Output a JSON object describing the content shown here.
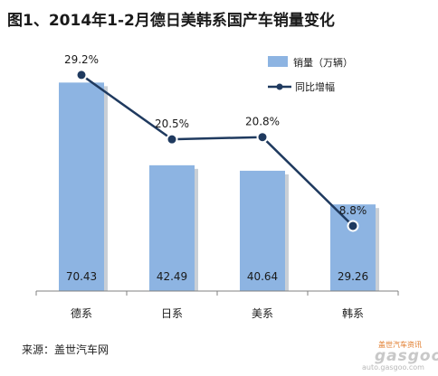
{
  "title": "图1、2014年1-2月德日美韩系国产车销量变化",
  "source": "来源：盖世汽车网",
  "watermark": {
    "top_text": "盖世汽车资讯",
    "logo": "gasgoo",
    "url": "auto.gasgoo.com"
  },
  "colors": {
    "bar": "#8db4e2",
    "bar_shadow": "#c9cfd6",
    "line": "#1f3a5f",
    "marker": "#1f3a5f",
    "axis": "#808080"
  },
  "chart_data": {
    "type": "bar",
    "categories": [
      "德系",
      "日系",
      "美系",
      "韩系"
    ],
    "series": [
      {
        "name": "销量（万辆）",
        "type": "bar",
        "values": [
          70.43,
          42.49,
          40.64,
          29.26
        ],
        "labels": [
          "70.43",
          "42.49",
          "40.64",
          "29.26"
        ]
      },
      {
        "name": "同比增幅",
        "type": "line",
        "values": [
          29.2,
          20.5,
          20.8,
          8.8
        ],
        "labels": [
          "29.2%",
          "20.5%",
          "20.8%",
          "8.8%"
        ],
        "unit": "%"
      }
    ],
    "ylim": [
      0,
      80
    ],
    "y2lim": [
      0,
      32
    ],
    "grid": false,
    "legend_position": "top-right"
  }
}
